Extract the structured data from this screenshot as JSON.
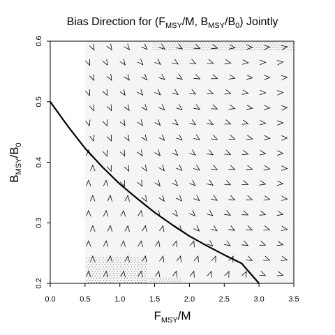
{
  "chart_data": {
    "type": "vector-field",
    "title": {
      "prefix": "Bias Direction for (F",
      "sub1": "MSY",
      "mid1": "/M, B",
      "sub2": "MSY",
      "mid2": "/B",
      "sub3": "0",
      "suffix": ") Jointly"
    },
    "xlabel": {
      "main": "F",
      "sub": "MSY",
      "suffix": "/M"
    },
    "ylabel": {
      "main": "B",
      "sub": "MSY",
      "mid": "/B",
      "sub2": "0"
    },
    "xlim": [
      0.0,
      3.5
    ],
    "ylim": [
      0.2,
      0.6
    ],
    "x_ticks": [
      "0.0",
      "0.5",
      "1.0",
      "1.5",
      "2.0",
      "2.5",
      "3.0",
      "3.5"
    ],
    "y_ticks": [
      "0.2",
      "0.3",
      "0.4",
      "0.5",
      "0.6"
    ],
    "grid": false,
    "shaded_region": {
      "x_min": 0.5,
      "x_max": 3.5,
      "y_min": 0.2,
      "y_max": 0.6,
      "color": "#f5f5f5"
    },
    "dotted_regions": [
      {
        "x_min": 1.45,
        "x_max": 3.5,
        "y_min": 0.585,
        "y_max": 0.6
      },
      {
        "x_min": 0.5,
        "x_max": 1.4,
        "y_min": 0.2,
        "y_max": 0.245
      },
      {
        "x_min": 1.4,
        "x_max": 1.9,
        "y_min": 0.2,
        "y_max": 0.21
      }
    ],
    "boundary_curve": {
      "description_points": [
        [
          0.0,
          0.5
        ],
        [
          0.25,
          0.46
        ],
        [
          0.5,
          0.423
        ],
        [
          0.75,
          0.392
        ],
        [
          1.0,
          0.364
        ],
        [
          1.25,
          0.34
        ],
        [
          1.5,
          0.317
        ],
        [
          1.75,
          0.297
        ],
        [
          2.0,
          0.278
        ],
        [
          2.25,
          0.262
        ],
        [
          2.5,
          0.247
        ],
        [
          2.75,
          0.233
        ],
        [
          3.0,
          0.2
        ]
      ],
      "color": "#000000"
    },
    "arrow_grid": {
      "x_start": 0.55,
      "x_step": 0.25,
      "x_count": 12,
      "y_start": 0.215,
      "y_step": 0.025,
      "y_count": 16,
      "color": "#000000"
    }
  }
}
